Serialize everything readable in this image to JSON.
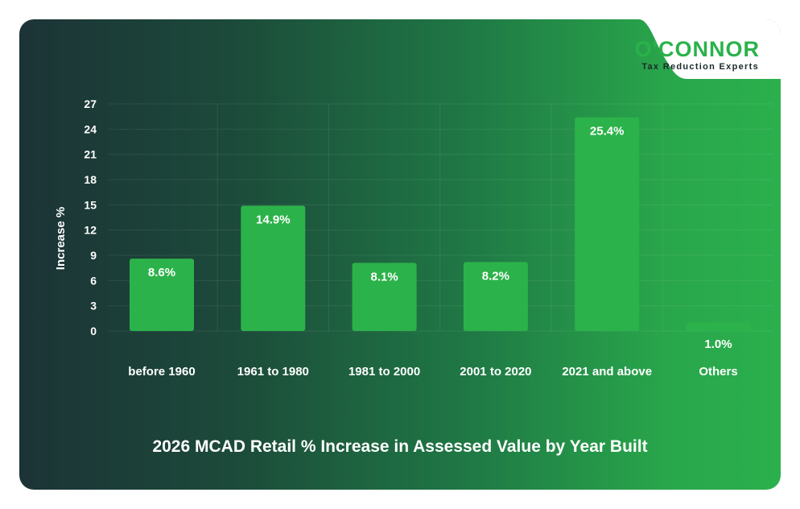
{
  "logo": {
    "word": "O'CONNOR",
    "tagline": "Tax Reduction Experts"
  },
  "chart_data": {
    "type": "bar",
    "title": "2026 MCAD Retail % Increase in Assessed Value by Year Built",
    "xlabel": "",
    "ylabel": "Increase %",
    "ylim": [
      0,
      27
    ],
    "yticks": [
      0,
      3,
      6,
      9,
      12,
      15,
      18,
      21,
      24,
      27
    ],
    "categories": [
      "before 1960",
      "1961 to 1980",
      "1981 to 2000",
      "2001 to 2020",
      "2021 and above",
      "Others"
    ],
    "values": [
      8.6,
      14.9,
      8.1,
      8.2,
      25.4,
      1.0
    ],
    "data_labels": [
      "8.6%",
      "14.9%",
      "8.1%",
      "8.2%",
      "25.4%",
      "1.0%"
    ],
    "grid": true,
    "legend": "none",
    "colors": {
      "bar": "#2cb24a",
      "background_dark": "#1c3336",
      "background_light": "#2bb04d",
      "text": "#ffffff"
    }
  }
}
